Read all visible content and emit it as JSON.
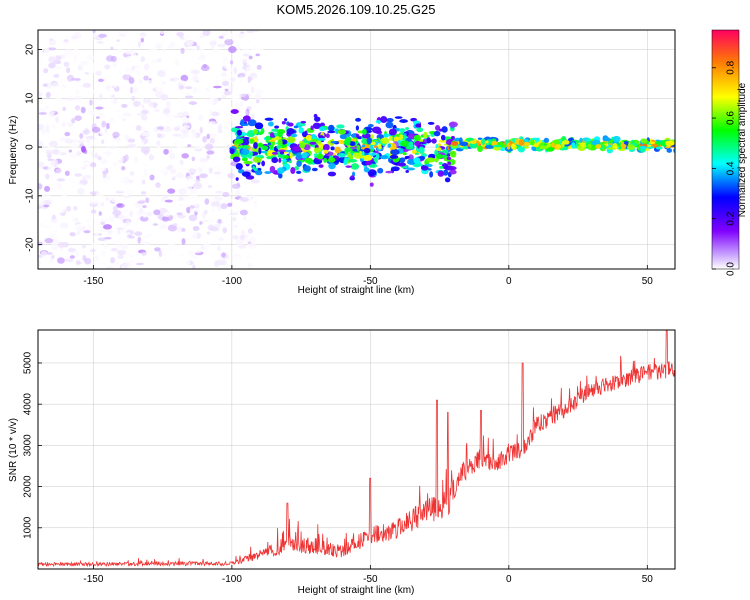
{
  "figure_title": "KOM5.2026.109.10.25.G25",
  "chart_data": [
    {
      "type": "heatmap",
      "panel": "spectrogram",
      "xlabel": "Height of straight line (km)",
      "ylabel": "Frequency (Hz)",
      "xlim": [
        -170,
        60
      ],
      "ylim": [
        -25,
        24
      ],
      "x_ticks": [
        -150,
        -100,
        -50,
        0,
        50
      ],
      "y_ticks": [
        -20,
        -10,
        0,
        10,
        20
      ],
      "grid": true,
      "colorbar": {
        "label": "Normalized spectral amplitude",
        "range": [
          0.0,
          0.95
        ],
        "ticks": [
          0.0,
          0.2,
          0.4,
          0.6,
          0.8
        ]
      },
      "regions": [
        {
          "x_range": [
            -170,
            -90
          ],
          "freq_range": [
            -25,
            24
          ],
          "amplitude_range": [
            0.0,
            0.1
          ],
          "description": "broadband noise"
        },
        {
          "x_range": [
            -100,
            -20
          ],
          "freq_range": [
            -8,
            8
          ],
          "amplitude_range": [
            0.1,
            0.85
          ],
          "description": "band around 0 Hz"
        },
        {
          "x_range": [
            -20,
            60
          ],
          "freq_range": [
            -1,
            2
          ],
          "amplitude_range": [
            0.3,
            0.95
          ],
          "description": "narrow band near 0-1 Hz"
        }
      ]
    },
    {
      "type": "line",
      "panel": "snr",
      "xlabel": "Height of straight line (km)",
      "ylabel": "SNR (10 * v/v)",
      "xlim": [
        -170,
        60
      ],
      "ylim": [
        0,
        5800
      ],
      "x_ticks": [
        -150,
        -100,
        -50,
        0,
        50
      ],
      "y_ticks": [
        1000,
        2000,
        3000,
        4000,
        5000
      ],
      "grid": true,
      "series": [
        {
          "name": "SNR",
          "color": "#ee3333",
          "trend_x": [
            -170,
            -100,
            -88,
            -80,
            -70,
            -60,
            -50,
            -40,
            -30,
            -22,
            -18,
            -10,
            -5,
            0,
            5,
            10,
            20,
            30,
            40,
            50,
            60
          ],
          "trend_y": [
            100,
            120,
            350,
            550,
            500,
            380,
            750,
            900,
            1300,
            1500,
            2200,
            2600,
            2500,
            2700,
            2900,
            3400,
            3800,
            4300,
            4500,
            4700,
            4800
          ],
          "spread": [
            80,
            100,
            250,
            450,
            400,
            300,
            450,
            500,
            600,
            700,
            500,
            400,
            400,
            450,
            500,
            450,
            450,
            400,
            400,
            400,
            400
          ],
          "peaks": [
            {
              "x": -80,
              "y": 1600
            },
            {
              "x": -50,
              "y": 2200
            },
            {
              "x": -26,
              "y": 4100
            },
            {
              "x": -22,
              "y": 3800
            },
            {
              "x": -10,
              "y": 3850
            },
            {
              "x": 5,
              "y": 5000
            },
            {
              "x": 57,
              "y": 5800
            }
          ]
        }
      ]
    }
  ]
}
